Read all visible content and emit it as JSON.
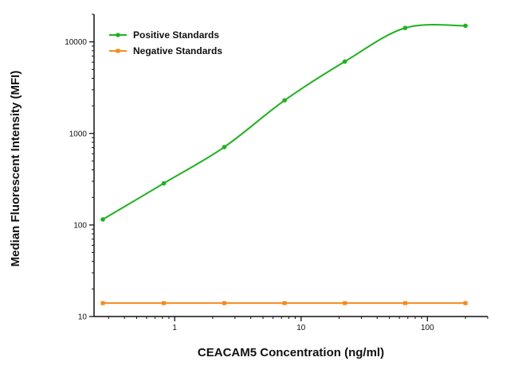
{
  "chart_data": {
    "type": "line",
    "title": "",
    "xlabel": "CEACAM5 Concentration (ng/ml)",
    "ylabel": "Median Fluorescent Intensity (MFI)",
    "x_scale": "log",
    "y_scale": "log",
    "xlim": [
      0.23,
      300
    ],
    "ylim": [
      10,
      20000
    ],
    "x_ticks": [
      1,
      10,
      100
    ],
    "x_tick_labels": [
      "1",
      "10",
      "100"
    ],
    "y_ticks": [
      10,
      100,
      1000,
      10000
    ],
    "y_tick_labels": [
      "10",
      "100",
      "1000",
      "10000"
    ],
    "grid": false,
    "legend_position": "top-left",
    "x": [
      0.27,
      0.82,
      2.47,
      7.41,
      22.2,
      66.7,
      200
    ],
    "series": [
      {
        "name": "Positive Standards",
        "color": "#1db31d",
        "marker": "circle",
        "values": [
          115,
          285,
          710,
          2300,
          6100,
          14200,
          15000
        ]
      },
      {
        "name": "Negative Standards",
        "color": "#f58a1f",
        "marker": "square",
        "values": [
          14,
          14,
          14,
          14,
          14,
          14,
          14
        ]
      }
    ]
  }
}
